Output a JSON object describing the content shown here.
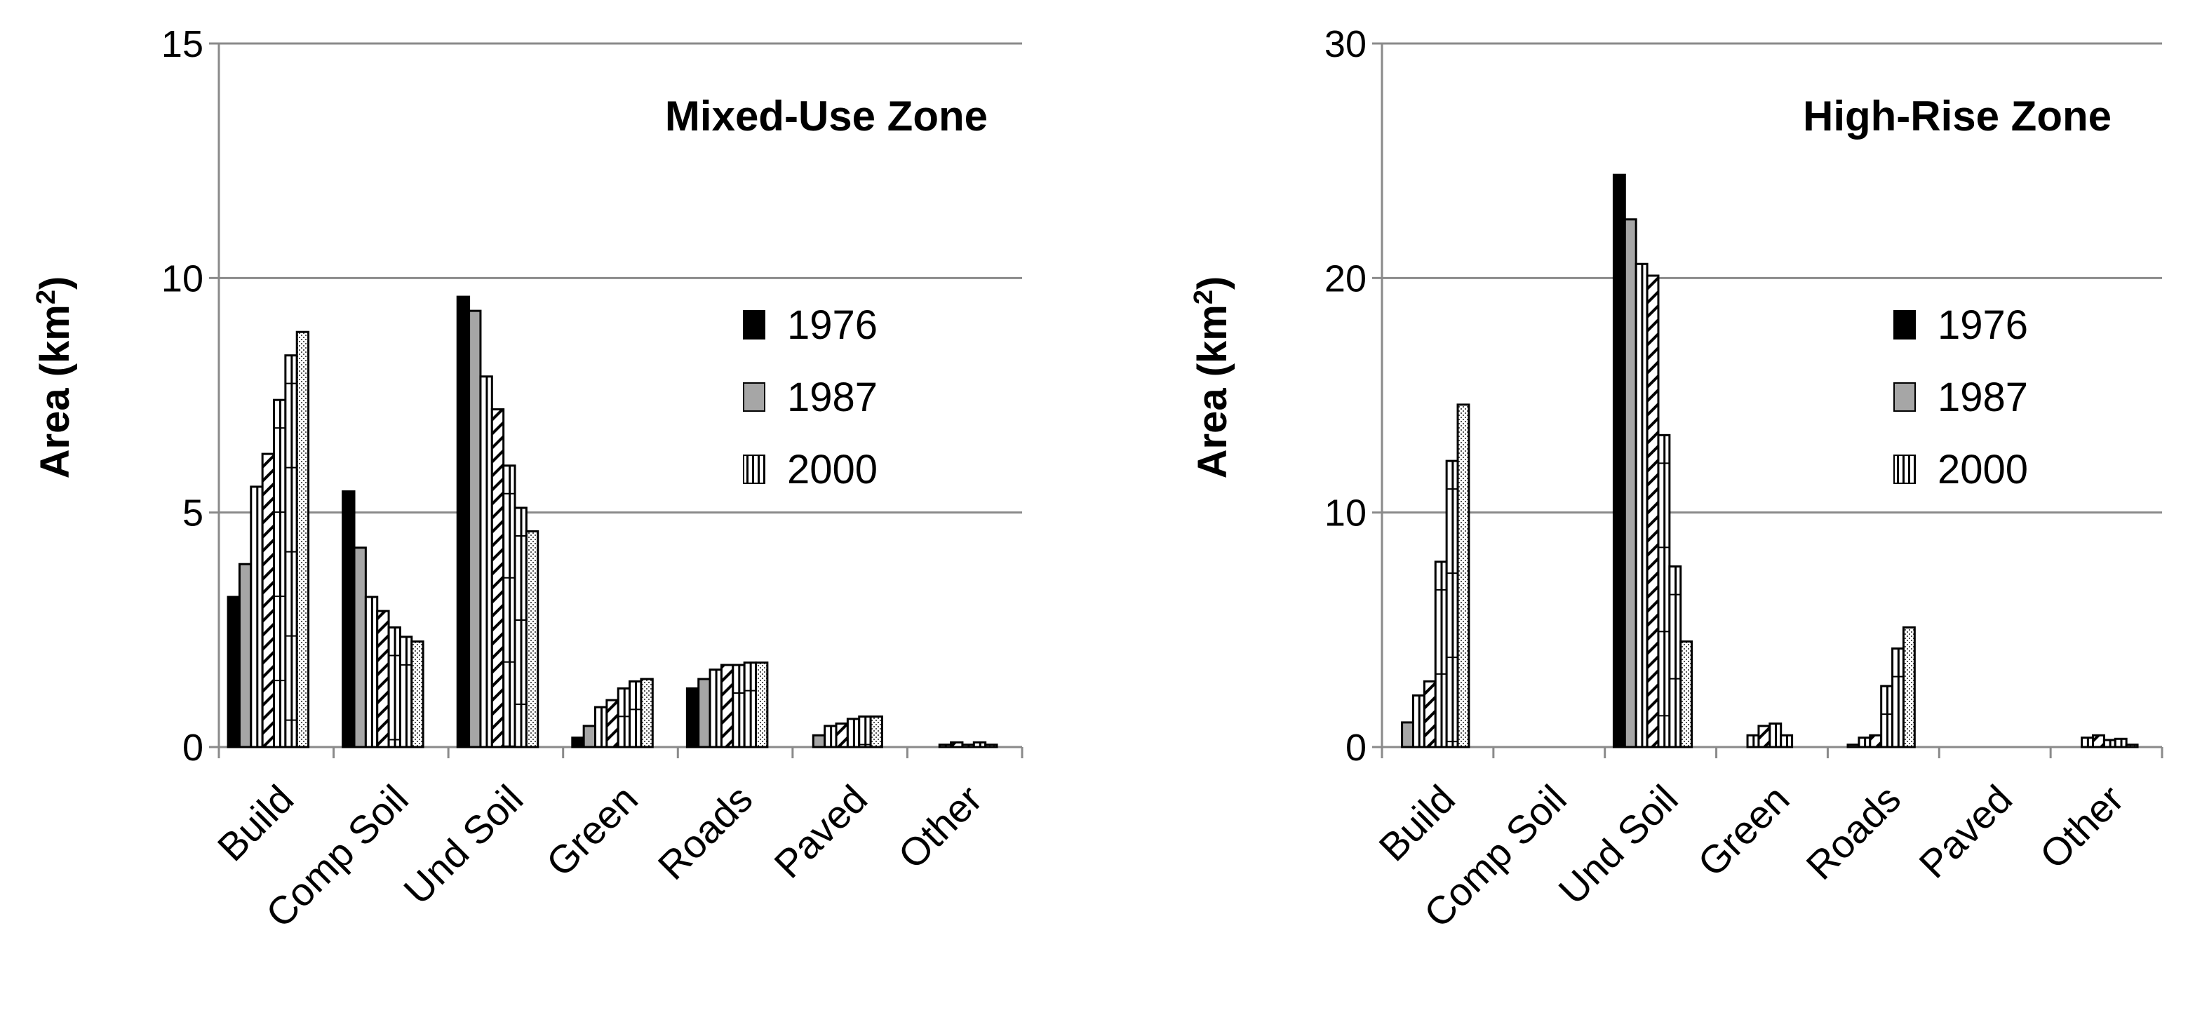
{
  "legend_years": [
    "1976",
    "1987",
    "2000"
  ],
  "chart_data": [
    {
      "type": "bar",
      "title": "Mixed-Use Zone",
      "xlabel": "",
      "ylabel": "Area (km",
      "ylabel_sup": "2",
      "ylabel_close": ")",
      "ylim": [
        0,
        15
      ],
      "yticks": [
        0,
        5,
        10,
        15
      ],
      "categories": [
        "Build",
        "Comp Soil",
        "Und Soil",
        "Green",
        "Roads",
        "Paved",
        "Other"
      ],
      "values": [
        [
          3.2,
          3.9,
          5.55,
          6.25,
          7.4,
          8.35,
          8.85
        ],
        [
          5.45,
          4.25,
          3.2,
          2.9,
          2.55,
          2.35,
          2.25
        ],
        [
          9.6,
          9.3,
          7.9,
          7.2,
          6.0,
          5.1,
          4.6
        ],
        [
          0.2,
          0.45,
          0.85,
          1.0,
          1.25,
          1.4,
          1.45
        ],
        [
          1.25,
          1.45,
          1.65,
          1.75,
          1.75,
          1.8,
          1.8
        ],
        [
          0.0,
          0.25,
          0.45,
          0.5,
          0.6,
          0.65,
          0.65
        ],
        [
          0.0,
          0.0,
          0.05,
          0.1,
          0.05,
          0.1,
          0.05
        ]
      ],
      "grid": true,
      "legend_position": "right-center"
    },
    {
      "type": "bar",
      "title": "High-Rise Zone",
      "xlabel": "",
      "ylabel": "Area (km",
      "ylabel_sup": "2",
      "ylabel_close": ")",
      "ylim": [
        0,
        30
      ],
      "yticks": [
        0,
        10,
        20,
        30
      ],
      "categories": [
        "Build",
        "Comp Soil",
        "Und Soil",
        "Green",
        "Roads",
        "Paved",
        "Other"
      ],
      "values": [
        [
          0.0,
          1.05,
          2.2,
          2.8,
          7.9,
          12.2,
          14.6
        ],
        [
          0.0,
          0.0,
          0.0,
          0.0,
          0.0,
          0.0,
          0.0
        ],
        [
          24.4,
          22.5,
          20.6,
          20.1,
          13.3,
          7.7,
          4.5
        ],
        [
          0.0,
          0.0,
          0.5,
          0.9,
          1.0,
          0.5,
          0.0
        ],
        [
          0.0,
          0.1,
          0.4,
          0.5,
          2.6,
          4.2,
          5.1
        ],
        [
          0.0,
          0.0,
          0.0,
          0.0,
          0.0,
          0.0,
          0.0
        ],
        [
          0.0,
          0.0,
          0.4,
          0.5,
          0.3,
          0.35,
          0.1
        ]
      ],
      "grid": true,
      "legend_position": "right-center"
    }
  ]
}
